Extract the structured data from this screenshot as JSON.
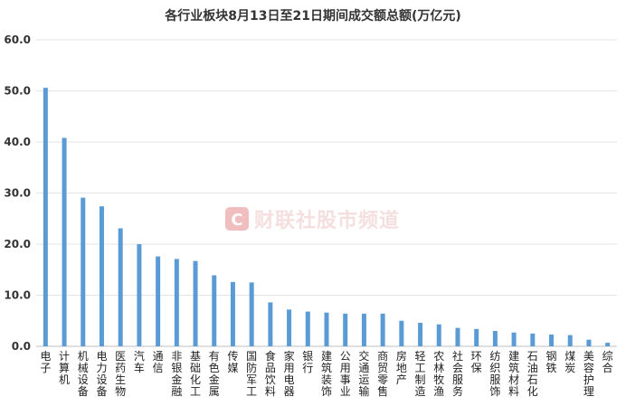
{
  "chart_data": {
    "type": "bar",
    "title": "各行业板块8月13日至21日期间成交额总额(万亿元)",
    "ylim": [
      0,
      60
    ],
    "yticks": [
      "0.0",
      "10.0",
      "20.0",
      "30.0",
      "40.0",
      "50.0",
      "60.0"
    ],
    "grid": true,
    "bar_color": "#5b9bd5",
    "categories": [
      "电子",
      "计算机",
      "机械设备",
      "电力设备",
      "医药生物",
      "汽车",
      "通信",
      "非银金融",
      "基础化工",
      "有色金属",
      "传媒",
      "国防军工",
      "食品饮料",
      "家用电器",
      "银行",
      "建筑装饰",
      "公用事业",
      "交通运输",
      "商贸零售",
      "房地产",
      "轻工制造",
      "农林牧渔",
      "社会服务",
      "环保",
      "纺织服饰",
      "建筑材料",
      "石油石化",
      "钢铁",
      "煤炭",
      "美容护理",
      "综合"
    ],
    "values": [
      50.6,
      40.8,
      29.1,
      27.4,
      23.1,
      20.0,
      17.6,
      17.1,
      16.7,
      13.9,
      12.6,
      12.5,
      8.6,
      7.2,
      6.8,
      6.6,
      6.4,
      6.4,
      6.4,
      5.0,
      4.6,
      4.3,
      3.6,
      3.4,
      3.0,
      2.7,
      2.5,
      2.3,
      2.2,
      1.3,
      0.7
    ]
  },
  "watermark": {
    "text": "财联社股市频道",
    "logo_letter": "C",
    "color": "#e07070"
  }
}
